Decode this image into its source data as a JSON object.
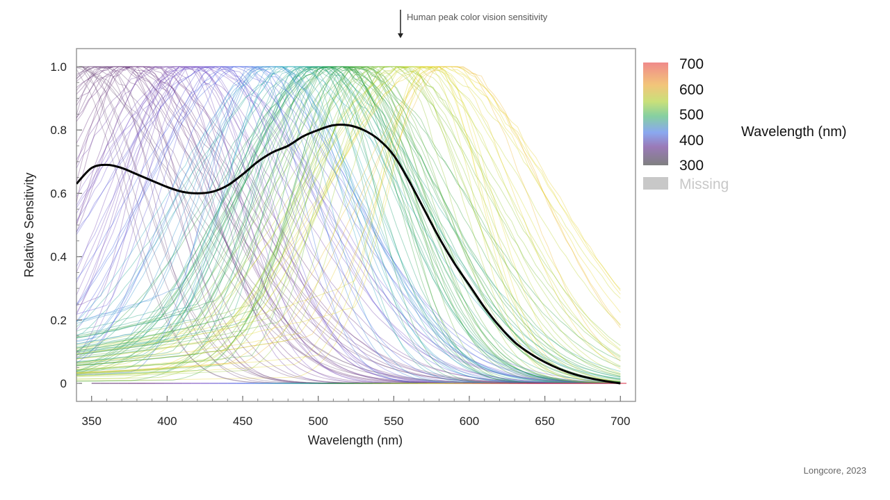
{
  "chart_data": {
    "type": "line",
    "xlabel": "Wavelength (nm)",
    "ylabel": "Relative Sensitivity",
    "xlim": [
      340,
      710
    ],
    "ylim": [
      0,
      1.05
    ],
    "x_ticks": [
      350,
      400,
      450,
      500,
      550,
      600,
      650,
      700
    ],
    "y_ticks": [
      0,
      0.2,
      0.4,
      0.6,
      0.8,
      1.0
    ],
    "y_tick_labels": [
      "0",
      "0.2",
      "0.4",
      "0.6",
      "0.8",
      "1.0"
    ],
    "grid": false,
    "series": [
      {
        "color": "#000000",
        "x": [
          340,
          350,
          360,
          370,
          380,
          390,
          400,
          410,
          420,
          430,
          440,
          450,
          460,
          470,
          480,
          490,
          500,
          510,
          520,
          530,
          540,
          550,
          560,
          570,
          580,
          590,
          600,
          610,
          620,
          630,
          640,
          650,
          660,
          670,
          680,
          690,
          700
        ],
        "values": [
          0.63,
          0.68,
          0.69,
          0.68,
          0.66,
          0.64,
          0.62,
          0.605,
          0.6,
          0.605,
          0.625,
          0.66,
          0.7,
          0.73,
          0.75,
          0.78,
          0.8,
          0.815,
          0.815,
          0.8,
          0.77,
          0.72,
          0.64,
          0.55,
          0.46,
          0.38,
          0.31,
          0.24,
          0.18,
          0.13,
          0.095,
          0.067,
          0.045,
          0.028,
          0.016,
          0.007,
          0.0
        ]
      }
    ],
    "background_curves_note": "",
    "legend": {
      "title": "Wavelength (nm)",
      "labels": [
        "700",
        "600",
        "500",
        "400",
        "300"
      ],
      "colorbar_colors": [
        "#f08a8a",
        "#f2c57a",
        "#c9e07a",
        "#86d0a0",
        "#8aa8f0",
        "#9a7ab8",
        "#808080"
      ],
      "missing_label": "Missing",
      "missing_color": "#c8c8c8",
      "placement": "right"
    }
  },
  "annotation": {
    "text": "Human peak color vision sensitivity"
  },
  "credit": "Longcore, 2023"
}
